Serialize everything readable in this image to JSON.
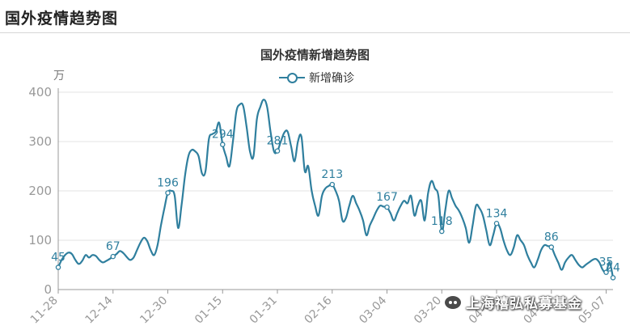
{
  "page": {
    "title": "国外疫情趋势图"
  },
  "colors": {
    "line": "#2f7f9e",
    "axis": "#999999",
    "grid": "#e3e3e3",
    "tick_text": "#999999",
    "label": "#2f7f9e"
  },
  "watermark": {
    "text": "上海禧弘私募基金",
    "icon": "wechat-icon"
  },
  "chart_data": {
    "type": "line",
    "title": "国外疫情新增趋势图",
    "unit": "万",
    "legend": {
      "label": "新增确诊",
      "position": "top-center"
    },
    "ylim": [
      0,
      400
    ],
    "y_ticks": [
      0,
      100,
      200,
      300,
      400
    ],
    "grid": true,
    "x_range": [
      0,
      162
    ],
    "x_tick_labels": [
      {
        "x": 0,
        "label": "11-28"
      },
      {
        "x": 16,
        "label": "12-14"
      },
      {
        "x": 32,
        "label": "12-30"
      },
      {
        "x": 48,
        "label": "01-15"
      },
      {
        "x": 64,
        "label": "01-31"
      },
      {
        "x": 80,
        "label": "02-16"
      },
      {
        "x": 96,
        "label": "03-04"
      },
      {
        "x": 112,
        "label": "03-20"
      },
      {
        "x": 128,
        "label": "04-05"
      },
      {
        "x": 144,
        "label": "04-21"
      },
      {
        "x": 160,
        "label": "05-07"
      }
    ],
    "series": [
      {
        "name": "新增确诊",
        "points": [
          [
            0,
            45
          ],
          [
            1,
            60
          ],
          [
            2,
            70
          ],
          [
            3,
            75
          ],
          [
            4,
            72
          ],
          [
            5,
            60
          ],
          [
            6,
            52
          ],
          [
            7,
            58
          ],
          [
            8,
            70
          ],
          [
            9,
            65
          ],
          [
            10,
            70
          ],
          [
            11,
            68
          ],
          [
            12,
            60
          ],
          [
            13,
            55
          ],
          [
            14,
            58
          ],
          [
            15,
            62
          ],
          [
            16,
            67
          ],
          [
            17,
            72
          ],
          [
            18,
            78
          ],
          [
            19,
            74
          ],
          [
            20,
            66
          ],
          [
            21,
            60
          ],
          [
            22,
            65
          ],
          [
            23,
            80
          ],
          [
            24,
            95
          ],
          [
            25,
            105
          ],
          [
            26,
            98
          ],
          [
            27,
            80
          ],
          [
            28,
            70
          ],
          [
            29,
            90
          ],
          [
            30,
            130
          ],
          [
            31,
            165
          ],
          [
            32,
            196
          ],
          [
            33,
            200
          ],
          [
            34,
            190
          ],
          [
            35,
            125
          ],
          [
            36,
            170
          ],
          [
            37,
            230
          ],
          [
            38,
            270
          ],
          [
            39,
            283
          ],
          [
            40,
            280
          ],
          [
            41,
            270
          ],
          [
            42,
            235
          ],
          [
            43,
            240
          ],
          [
            44,
            305
          ],
          [
            45,
            315
          ],
          [
            46,
            320
          ],
          [
            47,
            338
          ],
          [
            48,
            294
          ],
          [
            49,
            270
          ],
          [
            50,
            250
          ],
          [
            51,
            300
          ],
          [
            52,
            360
          ],
          [
            53,
            375
          ],
          [
            54,
            372
          ],
          [
            55,
            330
          ],
          [
            56,
            280
          ],
          [
            57,
            270
          ],
          [
            58,
            345
          ],
          [
            59,
            370
          ],
          [
            60,
            385
          ],
          [
            61,
            370
          ],
          [
            62,
            320
          ],
          [
            63,
            280
          ],
          [
            64,
            281
          ],
          [
            65,
            300
          ],
          [
            66,
            318
          ],
          [
            67,
            320
          ],
          [
            68,
            290
          ],
          [
            69,
            260
          ],
          [
            70,
            300
          ],
          [
            71,
            310
          ],
          [
            72,
            240
          ],
          [
            73,
            250
          ],
          [
            74,
            200
          ],
          [
            75,
            170
          ],
          [
            76,
            150
          ],
          [
            77,
            190
          ],
          [
            78,
            205
          ],
          [
            79,
            210
          ],
          [
            80,
            213
          ],
          [
            81,
            200
          ],
          [
            82,
            180
          ],
          [
            83,
            140
          ],
          [
            84,
            145
          ],
          [
            85,
            170
          ],
          [
            86,
            190
          ],
          [
            87,
            175
          ],
          [
            88,
            160
          ],
          [
            89,
            140
          ],
          [
            90,
            110
          ],
          [
            91,
            130
          ],
          [
            92,
            145
          ],
          [
            93,
            160
          ],
          [
            94,
            170
          ],
          [
            95,
            168
          ],
          [
            96,
            167
          ],
          [
            97,
            155
          ],
          [
            98,
            140
          ],
          [
            99,
            155
          ],
          [
            100,
            170
          ],
          [
            101,
            180
          ],
          [
            102,
            175
          ],
          [
            103,
            190
          ],
          [
            104,
            150
          ],
          [
            105,
            170
          ],
          [
            106,
            180
          ],
          [
            107,
            140
          ],
          [
            108,
            195
          ],
          [
            109,
            220
          ],
          [
            110,
            205
          ],
          [
            111,
            190
          ],
          [
            112,
            118
          ],
          [
            113,
            160
          ],
          [
            114,
            200
          ],
          [
            115,
            185
          ],
          [
            116,
            170
          ],
          [
            117,
            160
          ],
          [
            118,
            145
          ],
          [
            119,
            125
          ],
          [
            120,
            95
          ],
          [
            121,
            130
          ],
          [
            122,
            170
          ],
          [
            123,
            165
          ],
          [
            124,
            150
          ],
          [
            125,
            120
          ],
          [
            126,
            90
          ],
          [
            127,
            110
          ],
          [
            128,
            134
          ],
          [
            129,
            125
          ],
          [
            130,
            100
          ],
          [
            131,
            80
          ],
          [
            132,
            70
          ],
          [
            133,
            85
          ],
          [
            134,
            110
          ],
          [
            135,
            100
          ],
          [
            136,
            90
          ],
          [
            137,
            70
          ],
          [
            138,
            55
          ],
          [
            139,
            45
          ],
          [
            140,
            60
          ],
          [
            141,
            80
          ],
          [
            142,
            90
          ],
          [
            143,
            88
          ],
          [
            144,
            86
          ],
          [
            145,
            70
          ],
          [
            146,
            55
          ],
          [
            147,
            40
          ],
          [
            148,
            55
          ],
          [
            149,
            65
          ],
          [
            150,
            70
          ],
          [
            151,
            60
          ],
          [
            152,
            50
          ],
          [
            153,
            45
          ],
          [
            154,
            50
          ],
          [
            155,
            55
          ],
          [
            156,
            60
          ],
          [
            157,
            62
          ],
          [
            158,
            55
          ],
          [
            159,
            40
          ],
          [
            160,
            35
          ],
          [
            161,
            55
          ],
          [
            162,
            24
          ]
        ]
      }
    ],
    "data_labels": [
      {
        "x": 0,
        "y": 45,
        "label": "45"
      },
      {
        "x": 16,
        "y": 67,
        "label": "67"
      },
      {
        "x": 32,
        "y": 196,
        "label": "196"
      },
      {
        "x": 48,
        "y": 294,
        "label": "294"
      },
      {
        "x": 64,
        "y": 281,
        "label": "281"
      },
      {
        "x": 80,
        "y": 213,
        "label": "213"
      },
      {
        "x": 96,
        "y": 167,
        "label": "167"
      },
      {
        "x": 112,
        "y": 118,
        "label": "118"
      },
      {
        "x": 128,
        "y": 134,
        "label": "134"
      },
      {
        "x": 144,
        "y": 86,
        "label": "86"
      },
      {
        "x": 160,
        "y": 35,
        "label": "35"
      },
      {
        "x": 162,
        "y": 24,
        "label": "24"
      }
    ]
  }
}
